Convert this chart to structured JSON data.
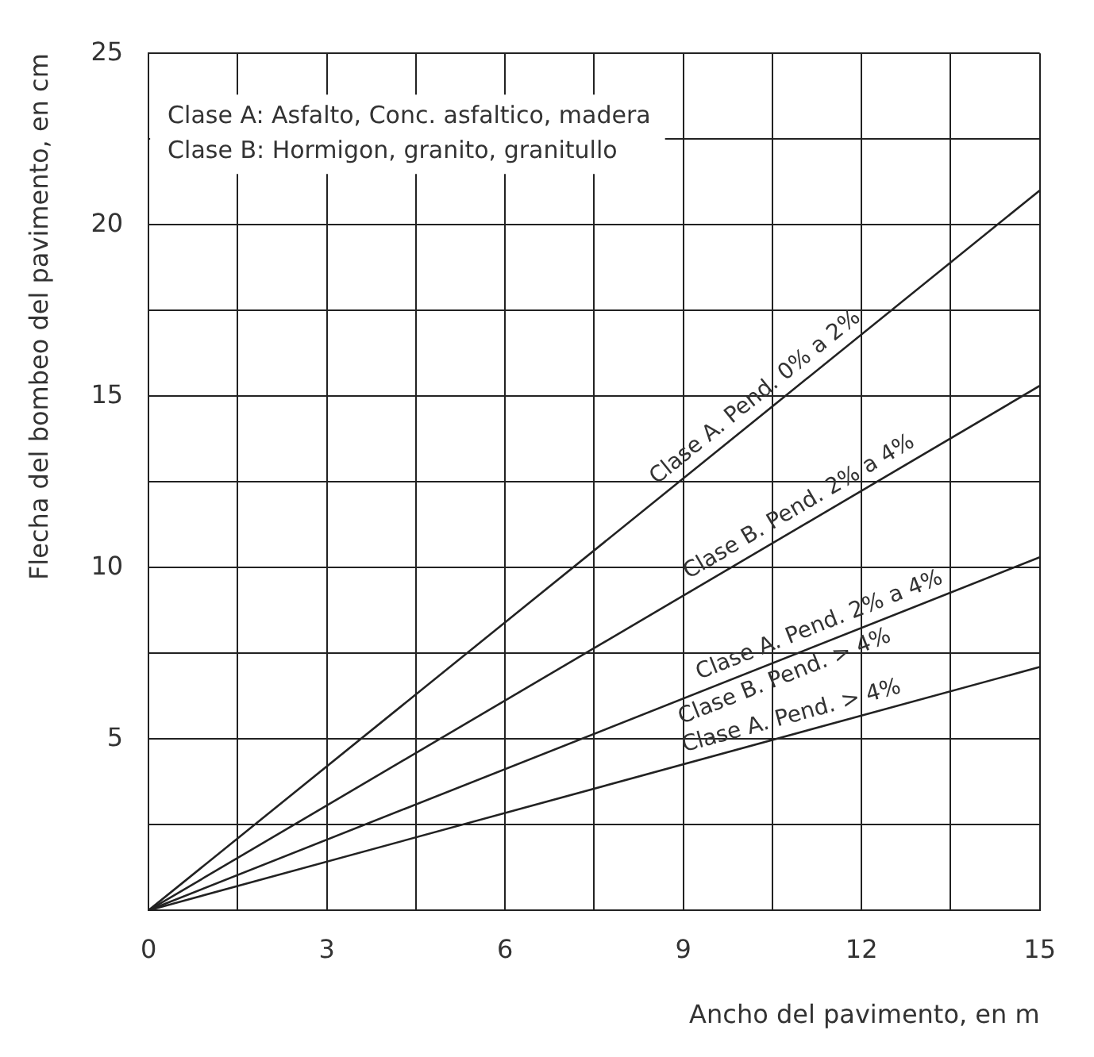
{
  "chart_data": {
    "type": "line",
    "xlabel": "Ancho del pavimento, en m",
    "ylabel": "Flecha del bombeo del pavimento, en cm",
    "x": [
      0,
      15
    ],
    "series": [
      {
        "color": "#222222",
        "values": [
          0,
          21
        ]
      },
      {
        "color": "#222222",
        "values": [
          0,
          15.3
        ]
      },
      {
        "color": "#222222",
        "values": [
          0,
          10.3
        ]
      },
      {
        "color": "#222222",
        "values": [
          0,
          7.1
        ]
      }
    ],
    "xlim": [
      0,
      15
    ],
    "ylim": [
      0,
      25
    ],
    "xticks": [
      0,
      {
        "value": 1.5,
        "label": null
      },
      3,
      {
        "value": 4.5,
        "label": null
      },
      6,
      {
        "value": 7.5,
        "label": null
      },
      9,
      {
        "value": 10.5,
        "label": null
      },
      12,
      {
        "value": 13.5,
        "label": null
      },
      15
    ],
    "yticks": [
      {
        "value": 0,
        "label": null
      },
      {
        "value": 2.5,
        "label": null
      },
      5,
      {
        "value": 7.5,
        "label": null
      },
      10,
      {
        "value": 12.5,
        "label": null
      },
      15,
      {
        "value": 17.5,
        "label": null
      },
      20,
      {
        "value": 22.5,
        "label": null
      },
      25
    ],
    "grid": true,
    "marker": "none",
    "line_style": "solid",
    "annotations": [
      "Clase A: Asfalto, Conc. asfaltico, madera",
      "Clase B: Hormigon, granito, granitullo",
      {
        "text": "Clase A. Pend. 0% a 2%",
        "x": 10.4,
        "y": 14.56
      },
      {
        "text": "Clase B. Pend. 2% a 4%",
        "x": 11.1,
        "y": 11.32
      },
      {
        "text": "Clase A. Pend. 2% a 4%",
        "x": 11.4,
        "y": 7.83
      },
      {
        "text": "Clase B. Pend. > 4%",
        "x": 10.6,
        "y": 7.28
      },
      {
        "text": "Clase A. Pend. > 4%",
        "x": 10.9,
        "y": 5.16
      }
    ]
  }
}
